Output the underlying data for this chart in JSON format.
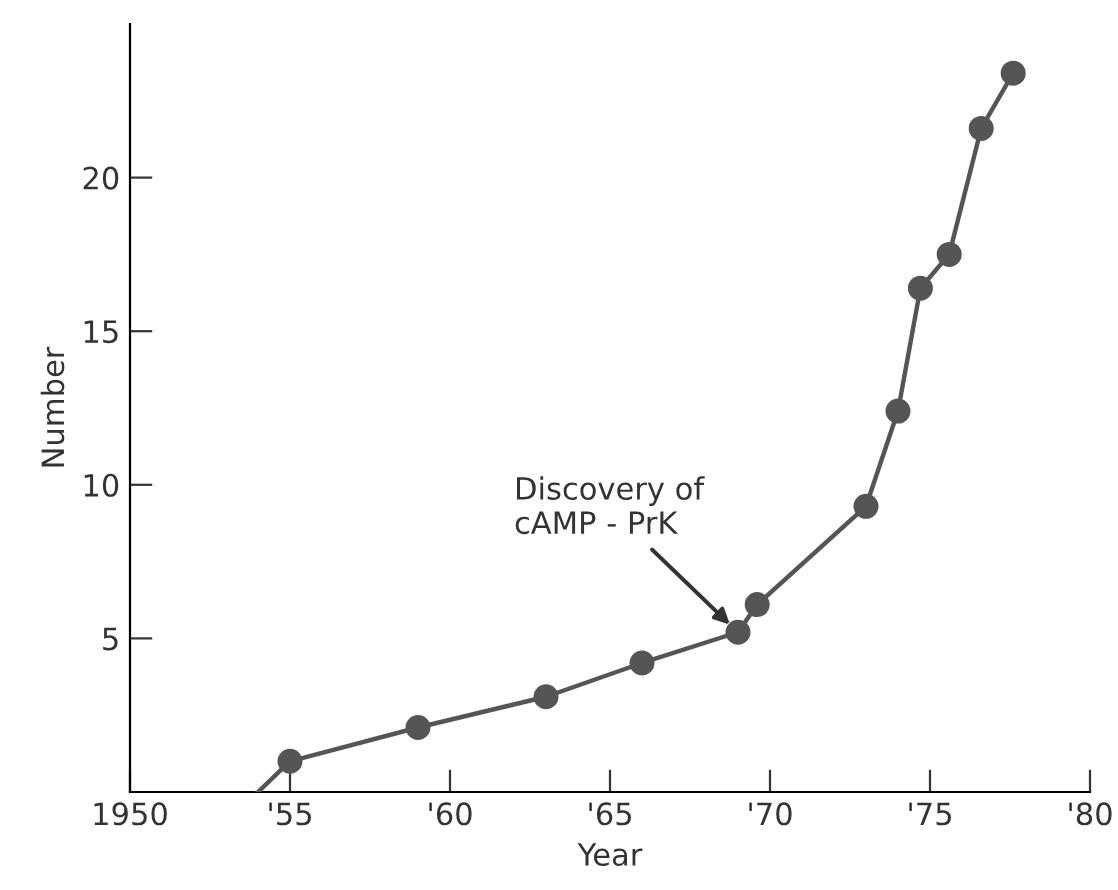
{
  "chart_data": {
    "type": "line",
    "xlabel": "Year",
    "ylabel": "Number",
    "x": [
      1955,
      1959,
      1963,
      1966,
      1969,
      1969.6,
      1973,
      1974,
      1974.7,
      1975.6,
      1976.6,
      1977.6
    ],
    "series": [
      {
        "color": "#555555",
        "values": [
          1.0,
          2.1,
          3.1,
          4.2,
          5.2,
          6.1,
          9.3,
          12.4,
          16.4,
          17.5,
          21.6,
          23.4
        ]
      },
      {
        "color": "#555555",
        "x": [
          1954,
          1955
        ],
        "values": [
          0,
          1.0
        ],
        "marker": "none"
      }
    ],
    "xlim": [
      1950,
      1980
    ],
    "ylim": [
      0,
      25
    ],
    "xticks": [
      1950,
      {
        "value": 1955,
        "label": "'55"
      },
      {
        "value": 1960,
        "label": "'60"
      },
      {
        "value": 1965,
        "label": "'65"
      },
      {
        "value": 1970,
        "label": "'70"
      },
      {
        "value": 1975,
        "label": "'75"
      },
      {
        "value": 1980,
        "label": "'80"
      }
    ],
    "yticks": [
      5,
      10,
      15,
      20
    ],
    "annotations": [
      {
        "text": "Discovery of\ncAMP - PrK",
        "x": 1969,
        "y": 5.2
      }
    ],
    "marker": "circle",
    "line_style": "solid",
    "grid": false,
    "legend": false
  }
}
